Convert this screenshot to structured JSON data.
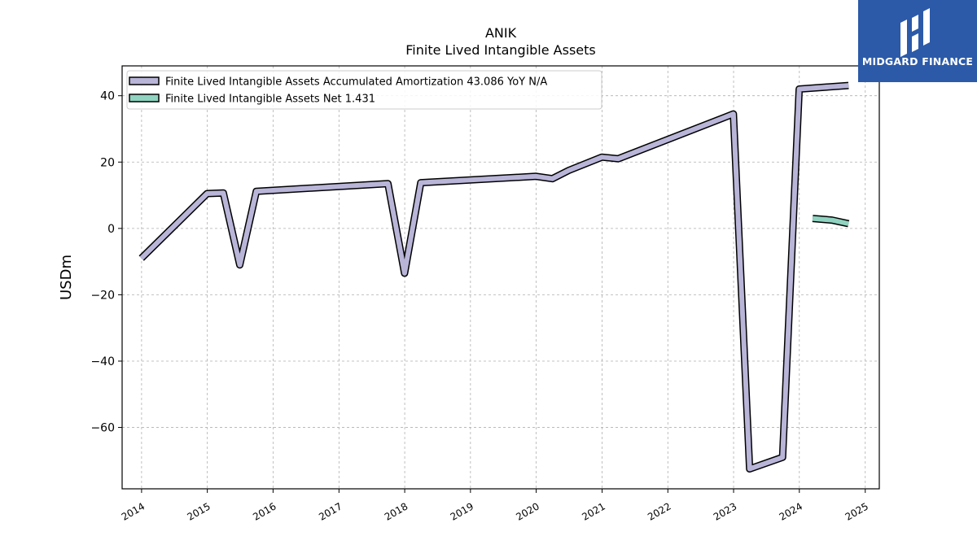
{
  "chart_data": {
    "type": "line",
    "title": "ANIK",
    "subtitle": "Finite Lived Intangible Assets",
    "xlabel": "",
    "ylabel": "USDm",
    "xlim": [
      "2013-09-15",
      "2025-03-20"
    ],
    "ylim": [
      -78.5,
      49
    ],
    "x_ticks": [
      "2014",
      "2015",
      "2016",
      "2017",
      "2018",
      "2019",
      "2020",
      "2021",
      "2022",
      "2023",
      "2024",
      "2025"
    ],
    "y_ticks": [
      -60,
      -40,
      -20,
      0,
      20,
      40
    ],
    "y_tick_labels": [
      "−60",
      "−40",
      "−20",
      "0",
      "20",
      "40"
    ],
    "grid": true,
    "legend_position": "top-left",
    "series": [
      {
        "name": "Finite Lived Intangible Assets Accumulated Amortization",
        "legend_label": "Finite Lived Intangible Assets Accumulated Amortization  43.086 YoY N/A",
        "color": "#b9b5d8",
        "points": [
          [
            "2013-12-31",
            -9.0
          ],
          [
            "2014-12-31",
            10.5
          ],
          [
            "2015-03-31",
            10.7
          ],
          [
            "2015-06-30",
            -11.0
          ],
          [
            "2015-09-30",
            11.2
          ],
          [
            "2017-09-30",
            13.5
          ],
          [
            "2017-12-31",
            -13.5
          ],
          [
            "2018-03-31",
            13.8
          ],
          [
            "2019-12-31",
            15.7
          ],
          [
            "2020-03-31",
            15.0
          ],
          [
            "2020-06-30",
            17.5
          ],
          [
            "2020-12-31",
            21.5
          ],
          [
            "2021-03-31",
            21.0
          ],
          [
            "2022-12-31",
            34.5
          ],
          [
            "2023-03-31",
            -72.5
          ],
          [
            "2023-09-30",
            -69.0
          ],
          [
            "2023-12-31",
            42.0
          ],
          [
            "2024-09-30",
            43.1
          ]
        ]
      },
      {
        "name": "Finite Lived Intangible Assets Net",
        "legend_label": "Finite Lived Intangible Assets Net  1.431",
        "color": "#8fd3c0",
        "points": [
          [
            "2024-03-15",
            3.0
          ],
          [
            "2024-06-30",
            2.5
          ],
          [
            "2024-09-30",
            1.431
          ]
        ]
      }
    ]
  },
  "logo": {
    "text": "MIDGARD FINANCE",
    "color": "#2c5aa8"
  }
}
